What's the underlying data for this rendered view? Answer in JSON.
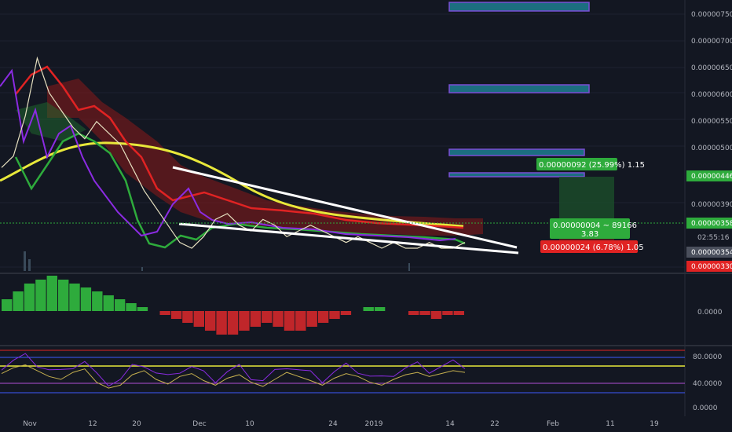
{
  "chart_data": {
    "type": "line",
    "price_axis": {
      "ticks": [
        "0.00000750",
        "0.00000700",
        "0.00000650",
        "0.00000600",
        "0.00000550",
        "0.00000500",
        "0.00000390",
        "0.00000330"
      ],
      "ymin": 3.2e-06,
      "ymax": 7.7e-06,
      "current_price_label": "0.00000358",
      "target_label": "0.00000446",
      "countdown_label": "02:55:16",
      "prev_label": "0.00000354",
      "stop_label": "0.00000330"
    },
    "x_axis": {
      "ticks": [
        "Nov",
        "12",
        "20",
        "Dec",
        "10",
        "24",
        "2019",
        "14",
        "22",
        "Feb",
        "11",
        "19"
      ]
    },
    "price_series": [
      4.9e-06,
      5.1e-06,
      5.8e-06,
      6.8e-06,
      6.2e-06,
      5.9e-06,
      5.6e-06,
      5.4e-06,
      5.7e-06,
      5.5e-06,
      5.3e-06,
      4.9e-06,
      4.5e-06,
      4.2e-06,
      3.9e-06,
      3.6e-06,
      3.5e-06,
      3.7e-06,
      4e-06,
      4.1e-06,
      3.9e-06,
      3.8e-06,
      4e-06,
      3.9e-06,
      3.7e-06,
      3.8e-06,
      3.9e-06,
      3.8e-06,
      3.7e-06,
      3.6e-06,
      3.7e-06,
      3.6e-06,
      3.5e-06,
      3.6e-06,
      3.5e-06,
      3.5e-06,
      3.6e-06,
      3.5e-06,
      3.5e-06,
      3.6e-06
    ],
    "position_box": {
      "profit_label": "0.00000092 (25.99%) 1.15",
      "entry_label": "0.00000004 ~ 89166",
      "entry_sub": "3.83",
      "loss_label": "0.00000024 (6.78%) 1.05"
    },
    "macd_panel": {
      "tick": "0.0000",
      "values": [
        3,
        5,
        7,
        8,
        9,
        8,
        7,
        6,
        5,
        4,
        3,
        2,
        1,
        0,
        -1,
        -2,
        -3,
        -4,
        -5,
        -6,
        -6,
        -5,
        -4,
        -3,
        -4,
        -5,
        -5,
        -4,
        -3,
        -2,
        -1,
        0,
        1,
        1,
        0,
        0,
        -1,
        -1,
        -2,
        -1,
        -1
      ]
    },
    "rsi_panel": {
      "ticks": [
        "80.0000",
        "40.0000",
        "0.0000"
      ],
      "levels": [
        80,
        70,
        30,
        20
      ],
      "values": [
        60,
        70,
        75,
        65,
        55,
        50,
        62,
        68,
        45,
        35,
        40,
        58,
        65,
        50,
        42,
        55,
        60,
        48,
        40,
        52,
        58,
        45,
        38,
        50,
        62,
        55,
        48,
        40,
        52,
        60,
        55,
        45,
        40,
        50,
        58,
        62,
        55,
        60,
        65,
        62
      ]
    }
  }
}
